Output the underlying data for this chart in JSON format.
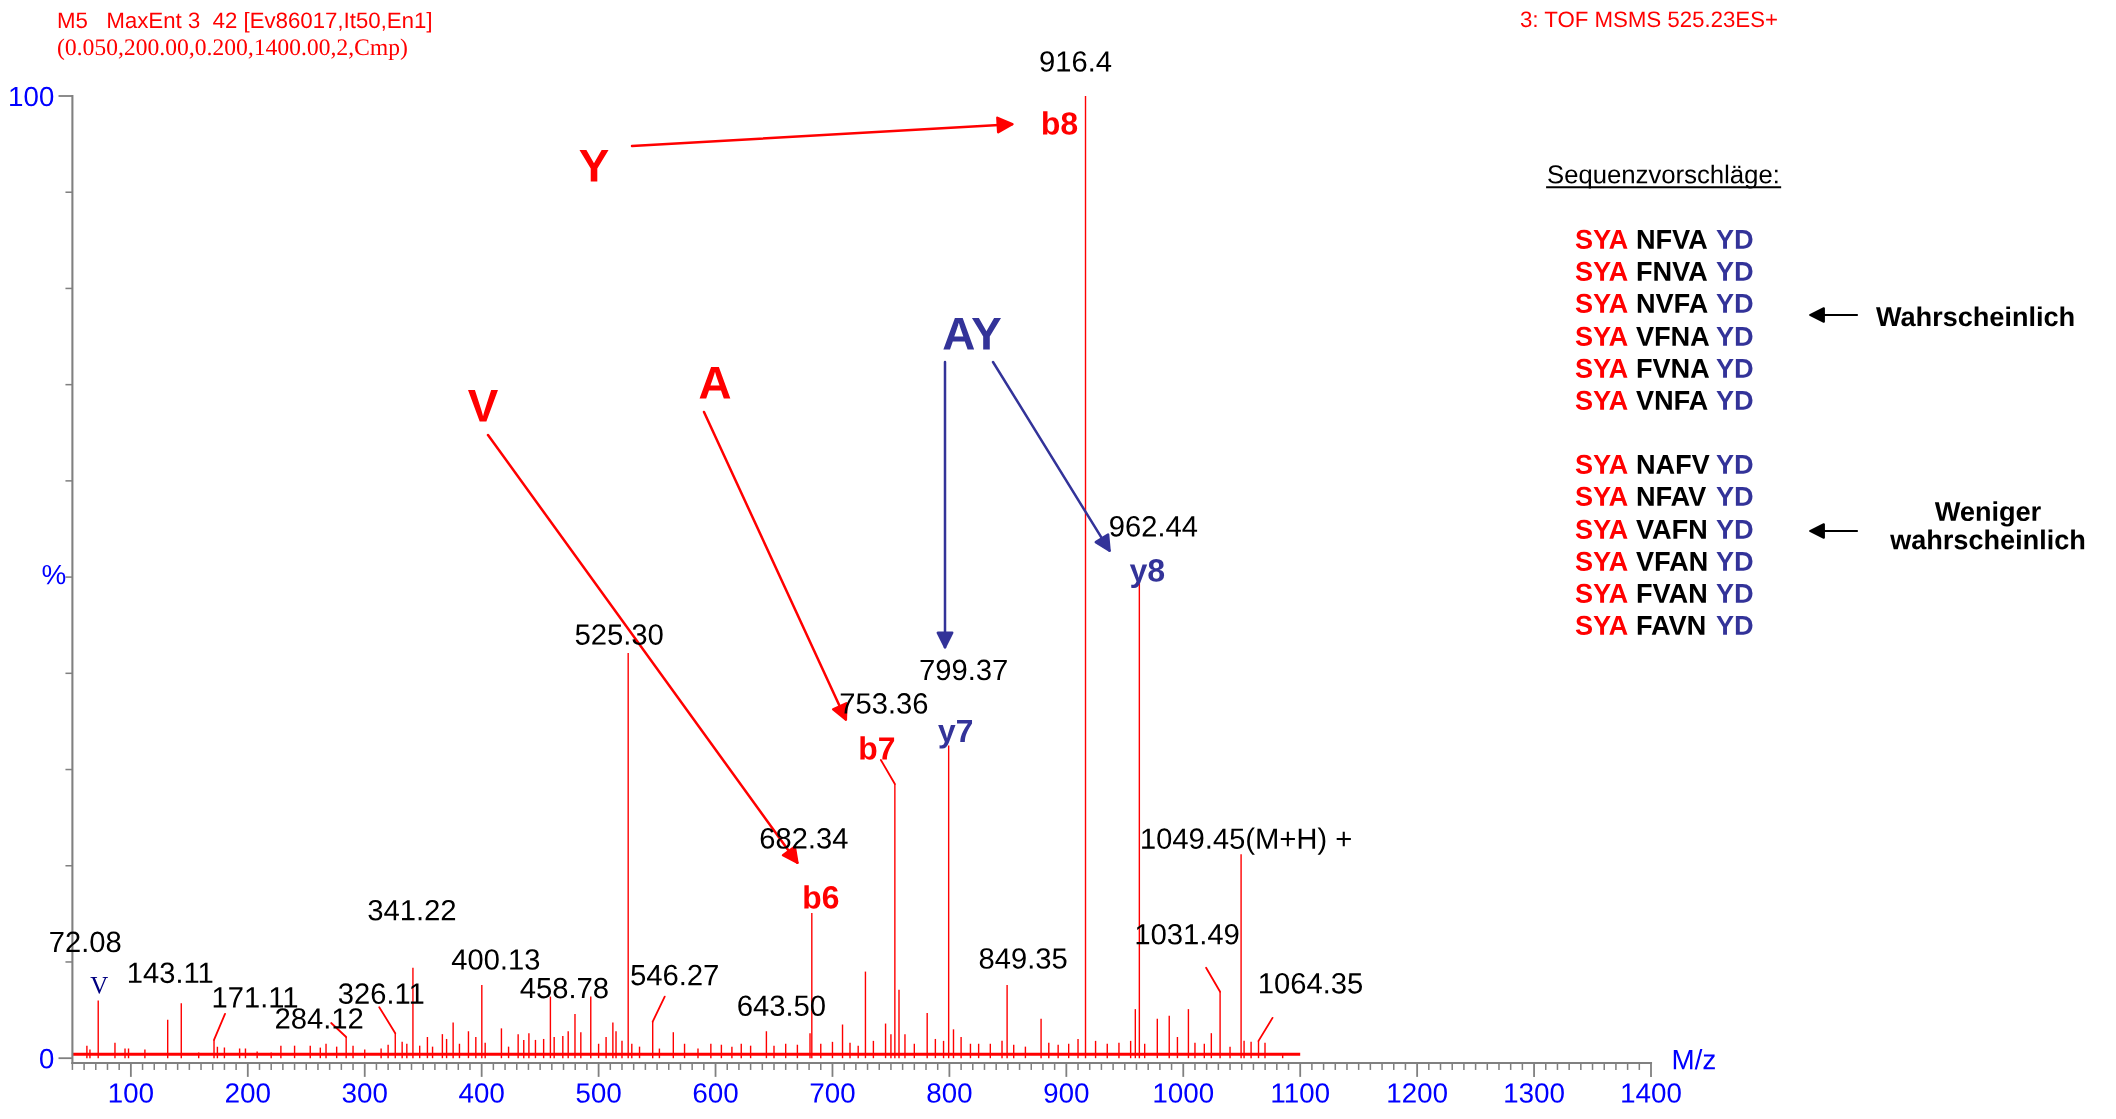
{
  "chart_data": [
    {
      "type": "bar",
      "title": "M5   MaxEnt 3  42 [Ev86017,It50,En1]",
      "subtitle": "(0.050,200.00,0.200,1400.00,2,Cmp)",
      "xlabel": "M/z",
      "ylabel": "%",
      "xlim": [
        50,
        1400
      ],
      "ylim": [
        -0.5,
        100
      ],
      "xticks": [
        {
          "value": 50,
          "label": null
        },
        {
          "value": 60,
          "label": null
        },
        {
          "value": 70,
          "label": null
        },
        {
          "value": 80,
          "label": null
        },
        {
          "value": 90,
          "label": null
        },
        100,
        {
          "value": 110,
          "label": null
        },
        {
          "value": 120,
          "label": null
        },
        {
          "value": 130,
          "label": null
        },
        {
          "value": 140,
          "label": null
        },
        {
          "value": 150,
          "label": null
        },
        {
          "value": 160,
          "label": null
        },
        {
          "value": 170,
          "label": null
        },
        {
          "value": 180,
          "label": null
        },
        {
          "value": 190,
          "label": null
        },
        200,
        {
          "value": 210,
          "label": null
        },
        {
          "value": 220,
          "label": null
        },
        {
          "value": 230,
          "label": null
        },
        {
          "value": 240,
          "label": null
        },
        {
          "value": 250,
          "label": null
        },
        {
          "value": 260,
          "label": null
        },
        {
          "value": 270,
          "label": null
        },
        {
          "value": 280,
          "label": null
        },
        {
          "value": 290,
          "label": null
        },
        300,
        {
          "value": 310,
          "label": null
        },
        {
          "value": 320,
          "label": null
        },
        {
          "value": 330,
          "label": null
        },
        {
          "value": 340,
          "label": null
        },
        {
          "value": 350,
          "label": null
        },
        {
          "value": 360,
          "label": null
        },
        {
          "value": 370,
          "label": null
        },
        {
          "value": 380,
          "label": null
        },
        {
          "value": 390,
          "label": null
        },
        400,
        {
          "value": 410,
          "label": null
        },
        {
          "value": 420,
          "label": null
        },
        {
          "value": 430,
          "label": null
        },
        {
          "value": 440,
          "label": null
        },
        {
          "value": 450,
          "label": null
        },
        {
          "value": 460,
          "label": null
        },
        {
          "value": 470,
          "label": null
        },
        {
          "value": 480,
          "label": null
        },
        {
          "value": 490,
          "label": null
        },
        500,
        {
          "value": 510,
          "label": null
        },
        {
          "value": 520,
          "label": null
        },
        {
          "value": 530,
          "label": null
        },
        {
          "value": 540,
          "label": null
        },
        {
          "value": 550,
          "label": null
        },
        {
          "value": 560,
          "label": null
        },
        {
          "value": 570,
          "label": null
        },
        {
          "value": 580,
          "label": null
        },
        {
          "value": 590,
          "label": null
        },
        600,
        {
          "value": 610,
          "label": null
        },
        {
          "value": 620,
          "label": null
        },
        {
          "value": 630,
          "label": null
        },
        {
          "value": 640,
          "label": null
        },
        {
          "value": 650,
          "label": null
        },
        {
          "value": 660,
          "label": null
        },
        {
          "value": 670,
          "label": null
        },
        {
          "value": 680,
          "label": null
        },
        {
          "value": 690,
          "label": null
        },
        700,
        {
          "value": 710,
          "label": null
        },
        {
          "value": 720,
          "label": null
        },
        {
          "value": 730,
          "label": null
        },
        {
          "value": 740,
          "label": null
        },
        {
          "value": 750,
          "label": null
        },
        {
          "value": 760,
          "label": null
        },
        {
          "value": 770,
          "label": null
        },
        {
          "value": 780,
          "label": null
        },
        {
          "value": 790,
          "label": null
        },
        800,
        {
          "value": 810,
          "label": null
        },
        {
          "value": 820,
          "label": null
        },
        {
          "value": 830,
          "label": null
        },
        {
          "value": 840,
          "label": null
        },
        {
          "value": 850,
          "label": null
        },
        {
          "value": 860,
          "label": null
        },
        {
          "value": 870,
          "label": null
        },
        {
          "value": 880,
          "label": null
        },
        {
          "value": 890,
          "label": null
        },
        900,
        {
          "value": 910,
          "label": null
        },
        {
          "value": 920,
          "label": null
        },
        {
          "value": 930,
          "label": null
        },
        {
          "value": 940,
          "label": null
        },
        {
          "value": 950,
          "label": null
        },
        {
          "value": 960,
          "label": null
        },
        {
          "value": 970,
          "label": null
        },
        {
          "value": 980,
          "label": null
        },
        {
          "value": 990,
          "label": null
        },
        1000,
        {
          "value": 1010,
          "label": null
        },
        {
          "value": 1020,
          "label": null
        },
        {
          "value": 1030,
          "label": null
        },
        {
          "value": 1040,
          "label": null
        },
        {
          "value": 1050,
          "label": null
        },
        {
          "value": 1060,
          "label": null
        },
        {
          "value": 1070,
          "label": null
        },
        {
          "value": 1080,
          "label": null
        },
        {
          "value": 1090,
          "label": null
        },
        1100,
        {
          "value": 1110,
          "label": null
        },
        {
          "value": 1120,
          "label": null
        },
        {
          "value": 1130,
          "label": null
        },
        {
          "value": 1140,
          "label": null
        },
        {
          "value": 1150,
          "label": null
        },
        {
          "value": 1160,
          "label": null
        },
        {
          "value": 1170,
          "label": null
        },
        {
          "value": 1180,
          "label": null
        },
        {
          "value": 1190,
          "label": null
        },
        1200,
        {
          "value": 1210,
          "label": null
        },
        {
          "value": 1220,
          "label": null
        },
        {
          "value": 1230,
          "label": null
        },
        {
          "value": 1240,
          "label": null
        },
        {
          "value": 1250,
          "label": null
        },
        {
          "value": 1260,
          "label": null
        },
        {
          "value": 1270,
          "label": null
        },
        {
          "value": 1280,
          "label": null
        },
        {
          "value": 1290,
          "label": null
        },
        1300,
        {
          "value": 1310,
          "label": null
        },
        {
          "value": 1320,
          "label": null
        },
        {
          "value": 1330,
          "label": null
        },
        {
          "value": 1340,
          "label": null
        },
        {
          "value": 1350,
          "label": null
        },
        {
          "value": 1360,
          "label": null
        },
        {
          "value": 1370,
          "label": null
        },
        {
          "value": 1380,
          "label": null
        },
        {
          "value": 1390,
          "label": null
        },
        1400
      ],
      "yticks": [
        0,
        {
          "value": 10,
          "label": null
        },
        {
          "value": 20,
          "label": null
        },
        {
          "value": 30,
          "label": null
        },
        {
          "value": 40,
          "label": null
        },
        {
          "value": 50,
          "label": null
        },
        {
          "value": 60,
          "label": null
        },
        {
          "value": 70,
          "label": null
        },
        {
          "value": 80,
          "label": null
        },
        {
          "value": 90,
          "label": null
        },
        100
      ],
      "series": [
        {
          "type": "bar",
          "color": "#ff0000",
          "x": [
            62.4,
            65,
            72.08,
            86.4,
            95,
            98,
            112,
            131.5,
            143.11,
            158,
            171.11,
            174,
            180,
            193,
            198,
            208,
            220,
            228.3,
            240,
            253.4,
            262,
            266.9,
            276,
            284.12,
            290,
            300,
            314,
            320,
            326.11,
            332,
            336,
            341.22,
            347,
            353.6,
            358,
            366.4,
            370,
            375.6,
            381,
            388.7,
            395,
            400.13,
            403,
            416.9,
            423,
            431.2,
            436,
            440.4,
            446,
            453,
            458.78,
            462,
            469.4,
            474,
            479.8,
            484.8,
            493.3,
            500,
            506.4,
            512.2,
            514.9,
            520,
            525.3,
            528.4,
            535,
            546.27,
            552,
            563.9,
            573.5,
            585,
            596,
            605,
            614,
            622,
            630,
            643.5,
            650,
            660,
            670,
            680.8,
            682.34,
            690,
            700,
            708.6,
            715,
            722,
            728.2,
            735,
            745.4,
            750,
            753.36,
            756.9,
            762,
            770,
            781,
            788,
            795,
            799.37,
            803.5,
            810,
            818,
            825,
            835,
            845,
            849.35,
            855,
            865,
            878.4,
            885,
            893,
            902,
            910,
            916.4,
            925,
            935,
            945,
            955,
            959,
            962.44,
            967,
            977.8,
            988,
            995,
            1004.4,
            1010,
            1018,
            1024,
            1031.49,
            1040,
            1049.45,
            1052,
            1058,
            1064.35,
            1069.9,
            1085
          ],
          "values": [
            1.3,
            0.9,
            6.0,
            1.6,
            1.0,
            1.0,
            0.9,
            4.0,
            5.7,
            0.6,
            1.9,
            1.2,
            1.1,
            1.0,
            1.0,
            0.7,
            0.6,
            1.3,
            1.3,
            1.3,
            1.1,
            1.5,
            1.2,
            2.2,
            1.3,
            0.9,
            1.0,
            1.4,
            2.6,
            1.7,
            1.5,
            9.4,
            1.3,
            2.2,
            1.2,
            2.5,
            2.0,
            3.7,
            1.5,
            2.8,
            2.2,
            7.6,
            1.6,
            3.1,
            1.2,
            2.5,
            1.9,
            2.6,
            1.9,
            2.0,
            6.4,
            2.2,
            2.3,
            2.8,
            4.6,
            2.7,
            6.4,
            1.5,
            2.2,
            3.7,
            2.8,
            1.8,
            42.1,
            1.5,
            1.2,
            3.8,
            1.0,
            2.7,
            1.5,
            1.0,
            1.5,
            1.4,
            1.2,
            1.5,
            1.3,
            2.8,
            1.3,
            1.5,
            1.4,
            2.6,
            15.1,
            1.5,
            1.7,
            3.5,
            1.6,
            1.3,
            9.0,
            1.8,
            3.6,
            2.5,
            28.5,
            7.1,
            2.5,
            1.5,
            4.7,
            2.0,
            1.8,
            32.5,
            3.0,
            2.2,
            1.5,
            1.5,
            1.5,
            1.8,
            7.6,
            1.4,
            1.2,
            4.1,
            1.6,
            1.4,
            1.5,
            2.0,
            100,
            1.8,
            1.5,
            1.6,
            1.8,
            5.1,
            49.5,
            1.5,
            4.1,
            4.4,
            2.2,
            5.1,
            1.6,
            1.5,
            2.6,
            6.9,
            1.2,
            21.2,
            1.8,
            1.7,
            1.8,
            1.6,
            0.5
          ]
        },
        {
          "type": "line",
          "color": "#ff0000",
          "x": [
            50,
            1100
          ],
          "values": [
            0.4,
            0.4
          ]
        }
      ],
      "annotations": [
        "3: TOF MSMS 525.23ES+",
        {
          "text": "916.4",
          "x": 916.4,
          "y": 100
        },
        {
          "text": "b8",
          "x": 916.4,
          "y": 100
        },
        "Y",
        {
          "text": "962.44",
          "x": 962.44,
          "y": 49.5
        },
        {
          "text": "y8",
          "x": 962.44,
          "y": 49.5
        },
        "AY",
        {
          "text": "799.37",
          "x": 799.37,
          "y": 32.5
        },
        {
          "text": "y7",
          "x": 799.37,
          "y": 32.5
        },
        "A",
        {
          "text": "753.36",
          "x": 753.36,
          "y": 28.5
        },
        {
          "text": "b7",
          "x": 753.36,
          "y": 28.5
        },
        "V",
        {
          "text": "682.34",
          "x": 682.34,
          "y": 15.1
        },
        {
          "text": "b6",
          "x": 682.34,
          "y": 15.1
        },
        {
          "text": "525.30",
          "x": 525.3,
          "y": 42.1
        },
        {
          "text": "1049.45(M+H) +",
          "x": 1049.45,
          "y": 21.2
        },
        {
          "text": "1031.49",
          "x": 1031.49,
          "y": 6.9
        },
        {
          "text": "1064.35",
          "x": 1064.35,
          "y": 1.8
        },
        {
          "text": "849.35",
          "x": 849.35,
          "y": 7.6
        },
        {
          "text": "643.50",
          "x": 643.5,
          "y": 2.8
        },
        {
          "text": "546.27",
          "x": 546.27,
          "y": 3.8
        },
        {
          "text": "458.78",
          "x": 458.78,
          "y": 6.4
        },
        {
          "text": "400.13",
          "x": 400.13,
          "y": 7.6
        },
        {
          "text": "341.22",
          "x": 341.22,
          "y": 9.4
        },
        {
          "text": "326.11",
          "x": 326.11,
          "y": 2.6
        },
        {
          "text": "284.12",
          "x": 284.12,
          "y": 2.2
        },
        {
          "text": "171.11",
          "x": 171.11,
          "y": 1.9
        },
        {
          "text": "143.11",
          "x": 143.11,
          "y": 5.7
        },
        {
          "text": "72.08",
          "x": 72.08,
          "y": 6.0
        },
        {
          "text": "V",
          "x": 72.08,
          "y": 6.0
        }
      ]
    },
    {
      "type": "other",
      "title": "Sequenzvorschläge:",
      "annotations": [
        "SYA NFVA YD",
        "SYA FNVA YD",
        "SYA NVFA YD",
        "SYA VFNA YD",
        "SYA FVNA YD",
        "SYA VNFA YD",
        "SYA NAFV YD",
        "SYA NFAV YD",
        "SYA VAFN YD",
        "SYA VFAN YD",
        "SYA FVAN YD",
        "SYA FAVN YD",
        "Wahrscheinlich",
        "Weniger\nwahrscheinlich"
      ]
    }
  ]
}
